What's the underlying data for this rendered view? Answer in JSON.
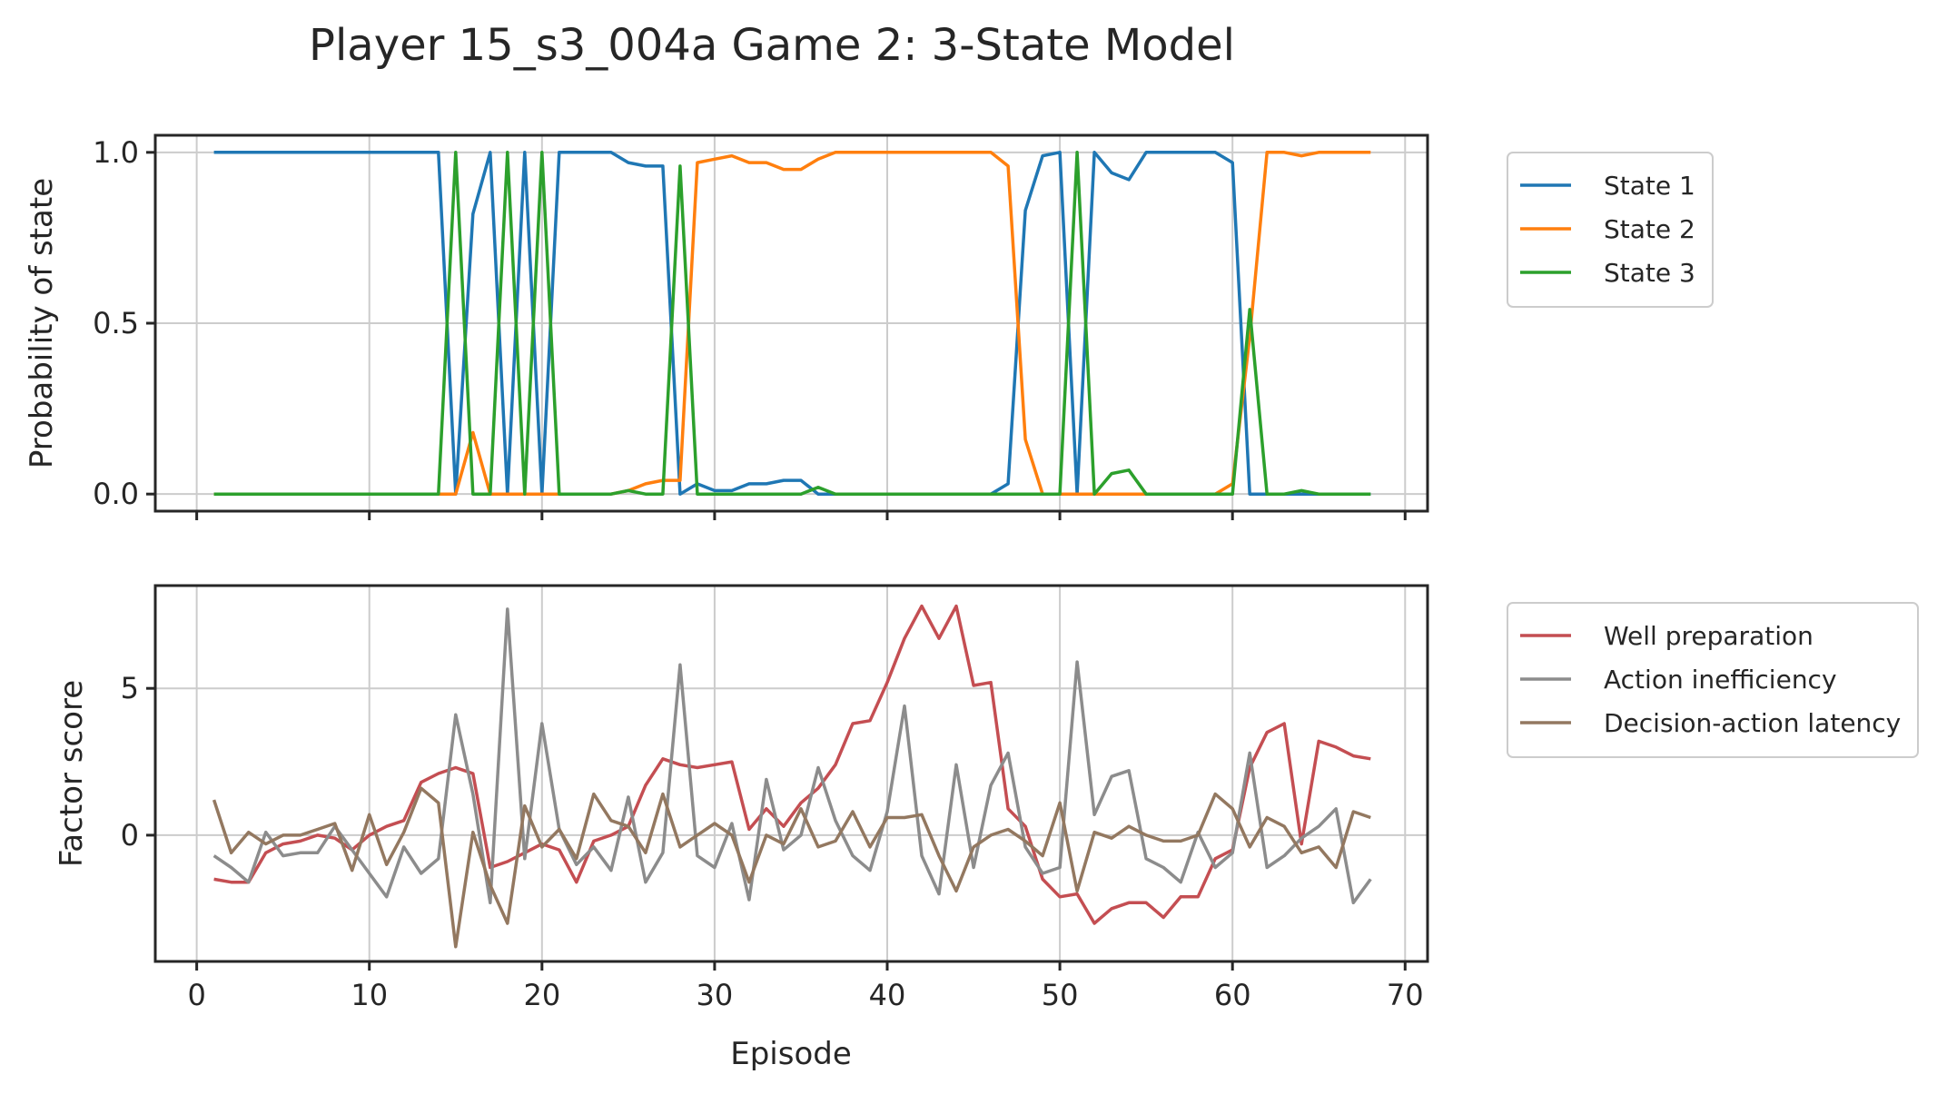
{
  "chart_data": {
    "title": "Player 15_s3_004a Game 2: 3-State Model",
    "xlabel": "Episode",
    "xlim": [
      -2.4,
      71.3
    ],
    "xticks": [
      0,
      10,
      20,
      30,
      40,
      50,
      60,
      70
    ],
    "x": [
      1,
      2,
      3,
      4,
      5,
      6,
      7,
      8,
      9,
      10,
      11,
      12,
      13,
      14,
      15,
      16,
      17,
      18,
      19,
      20,
      21,
      22,
      23,
      24,
      25,
      26,
      27,
      28,
      29,
      30,
      31,
      32,
      33,
      34,
      35,
      36,
      37,
      38,
      39,
      40,
      41,
      42,
      43,
      44,
      45,
      46,
      47,
      48,
      49,
      50,
      51,
      52,
      53,
      54,
      55,
      56,
      57,
      58,
      59,
      60,
      61,
      62,
      63,
      64,
      65,
      66,
      67,
      68
    ],
    "grid": true,
    "panels": [
      {
        "type": "line",
        "ylabel": "Probability of state",
        "ylim": [
          -0.05,
          1.05
        ],
        "yticks": [
          0.0,
          0.5,
          1.0
        ],
        "ytick_labels": [
          "0.0",
          "0.5",
          "1.0"
        ],
        "legend": "right-top",
        "series": [
          {
            "name": "State 1",
            "color": "#1f77b4",
            "values": [
              1,
              1,
              1,
              1,
              1,
              1,
              1,
              1,
              1,
              1,
              1,
              1,
              1,
              1,
              0,
              0.82,
              1,
              0,
              1,
              0,
              1,
              1,
              1,
              1,
              0.97,
              0.96,
              0.96,
              0,
              0.03,
              0.01,
              0.01,
              0.03,
              0.03,
              0.04,
              0.04,
              0,
              0,
              0,
              0,
              0,
              0,
              0,
              0,
              0,
              0,
              0,
              0.03,
              0.83,
              0.99,
              1,
              0,
              1,
              0.94,
              0.92,
              1,
              1,
              1,
              1,
              1,
              0.97,
              0,
              0,
              0,
              0,
              0,
              0,
              0,
              0
            ]
          },
          {
            "name": "State 2",
            "color": "#ff7f0e",
            "values": [
              0,
              0,
              0,
              0,
              0,
              0,
              0,
              0,
              0,
              0,
              0,
              0,
              0,
              0,
              0,
              0.18,
              0,
              0,
              0,
              0,
              0,
              0,
              0,
              0,
              0.01,
              0.03,
              0.04,
              0.04,
              0.97,
              0.98,
              0.99,
              0.97,
              0.97,
              0.95,
              0.95,
              0.98,
              1,
              1,
              1,
              1,
              1,
              1,
              1,
              1,
              1,
              1,
              0.96,
              0.16,
              0,
              0,
              0,
              0,
              0,
              0,
              0,
              0,
              0,
              0,
              0,
              0.03,
              0.46,
              1,
              1,
              0.99,
              1,
              1,
              1,
              1
            ]
          },
          {
            "name": "State 3",
            "color": "#2ca02c",
            "values": [
              0,
              0,
              0,
              0,
              0,
              0,
              0,
              0,
              0,
              0,
              0,
              0,
              0,
              0,
              1,
              0,
              0,
              1,
              0,
              1,
              0,
              0,
              0,
              0,
              0.01,
              0,
              0,
              0.96,
              0,
              0,
              0,
              0,
              0,
              0,
              0,
              0.02,
              0,
              0,
              0,
              0,
              0,
              0,
              0,
              0,
              0,
              0,
              0,
              0,
              0,
              0,
              1,
              0,
              0.06,
              0.07,
              0,
              0,
              0,
              0,
              0,
              0,
              0.54,
              0,
              0,
              0.01,
              0,
              0,
              0,
              0
            ]
          }
        ]
      },
      {
        "type": "line",
        "ylabel": "Factor score",
        "ylim": [
          -4.3,
          8.5
        ],
        "yticks": [
          0,
          5
        ],
        "ytick_labels": [
          "0",
          "5"
        ],
        "legend": "right-top",
        "series": [
          {
            "name": "Well preparation",
            "color": "#c44e52",
            "values": [
              -1.5,
              -1.6,
              -1.6,
              -0.6,
              -0.3,
              -0.2,
              0,
              -0.1,
              -0.5,
              0,
              0.3,
              0.5,
              1.8,
              2.1,
              2.3,
              2.1,
              -1.1,
              -0.9,
              -0.6,
              -0.3,
              -0.5,
              -1.6,
              -0.2,
              0,
              0.3,
              1.7,
              2.6,
              2.4,
              2.3,
              2.4,
              2.5,
              0.2,
              0.9,
              0.3,
              1.1,
              1.6,
              2.4,
              3.8,
              3.9,
              5.2,
              6.7,
              7.8,
              6.7,
              7.8,
              5.1,
              5.2,
              0.9,
              0.3,
              -1.5,
              -2.1,
              -2,
              -3,
              -2.5,
              -2.3,
              -2.3,
              -2.8,
              -2.1,
              -2.1,
              -0.8,
              -0.5,
              2.3,
              3.5,
              3.8,
              -0.3,
              3.2,
              3,
              2.7,
              2.6
            ]
          },
          {
            "name": "Action inefficiency",
            "color": "#8c8c8c",
            "values": [
              -0.7,
              -1.1,
              -1.6,
              0.1,
              -0.7,
              -0.6,
              -0.6,
              0.3,
              -0.5,
              -1.3,
              -2.1,
              -0.4,
              -1.3,
              -0.8,
              4.1,
              1.4,
              -2.3,
              7.7,
              -0.8,
              3.8,
              0.2,
              -1,
              -0.4,
              -1.2,
              1.3,
              -1.6,
              -0.6,
              5.8,
              -0.7,
              -1.1,
              0.4,
              -2.2,
              1.9,
              -0.5,
              0,
              2.3,
              0.5,
              -0.7,
              -1.2,
              0.8,
              4.4,
              -0.7,
              -2,
              2.4,
              -1.1,
              1.7,
              2.8,
              -0.4,
              -1.3,
              -1.1,
              5.9,
              0.7,
              2,
              2.2,
              -0.8,
              -1.1,
              -1.6,
              0.1,
              -1.1,
              -0.6,
              2.8,
              -1.1,
              -0.7,
              -0.1,
              0.3,
              0.9,
              -2.3,
              -1.5
            ]
          },
          {
            "name": "Decision-action latency",
            "color": "#937860",
            "values": [
              1.2,
              -0.6,
              0.1,
              -0.3,
              0,
              0,
              0.2,
              0.4,
              -1.2,
              0.7,
              -1,
              0.1,
              1.6,
              1.1,
              -3.8,
              0.1,
              -1.7,
              -3,
              1,
              -0.4,
              0.2,
              -0.8,
              1.4,
              0.5,
              0.3,
              -0.6,
              1.4,
              -0.4,
              0,
              0.4,
              0,
              -1.6,
              0,
              -0.3,
              0.9,
              -0.4,
              -0.2,
              0.8,
              -0.4,
              0.6,
              0.6,
              0.7,
              -0.7,
              -1.9,
              -0.4,
              0,
              0.2,
              -0.2,
              -0.7,
              1.1,
              -1.9,
              0.1,
              -0.1,
              0.3,
              0,
              -0.2,
              -0.2,
              0,
              1.4,
              0.9,
              -0.4,
              0.6,
              0.3,
              -0.6,
              -0.4,
              -1.1,
              0.8,
              0.6
            ]
          }
        ]
      }
    ]
  }
}
